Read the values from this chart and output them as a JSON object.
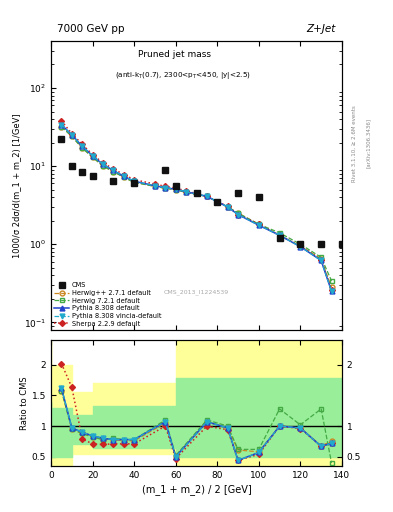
{
  "title_top": "7000 GeV pp",
  "title_right": "Z+Jet",
  "watermark": "CMS_2013_I1224539",
  "ylabel_main": "1000/σ 2dσ/d(m_1 + m_2) [1/GeV]",
  "ylabel_ratio": "Ratio to CMS",
  "xlabel": "(m_1 + m_2) / 2 [GeV]",
  "right_label": "Rivet 3.1.10, ≥ 2.6M events",
  "right_label2": "[arXiv:1306.3436]",
  "xlim": [
    0,
    140
  ],
  "ylim_main": [
    0.08,
    400
  ],
  "ylim_ratio": [
    0.35,
    2.4
  ],
  "cms_x": [
    5,
    10,
    15,
    20,
    30,
    40,
    55,
    60,
    70,
    80,
    90,
    100,
    110,
    120,
    130,
    140
  ],
  "cms_y": [
    22,
    10,
    8.5,
    7.5,
    6.5,
    6.0,
    9.0,
    5.5,
    4.5,
    3.5,
    4.5,
    4.0,
    1.2,
    1.0,
    1.0,
    1.0
  ],
  "herwig271_x": [
    5,
    10,
    15,
    20,
    25,
    30,
    35,
    40,
    50,
    55,
    60,
    65,
    75,
    85,
    90,
    100,
    110,
    120,
    130,
    135
  ],
  "herwig271_y": [
    32,
    24,
    17,
    13,
    10,
    8.5,
    7.2,
    6.2,
    5.5,
    5.2,
    5.0,
    4.6,
    4.1,
    3.0,
    2.5,
    1.8,
    1.3,
    0.95,
    0.65,
    0.28
  ],
  "herwig721_x": [
    5,
    10,
    15,
    20,
    25,
    30,
    35,
    40,
    50,
    55,
    60,
    65,
    75,
    85,
    90,
    100,
    110,
    120,
    130,
    135
  ],
  "herwig721_y": [
    32,
    24,
    17,
    13,
    10,
    8.5,
    7.2,
    6.2,
    5.5,
    5.2,
    5.0,
    4.6,
    4.1,
    3.0,
    2.5,
    1.8,
    1.4,
    1.0,
    0.68,
    0.34
  ],
  "pythia308_x": [
    5,
    10,
    15,
    20,
    25,
    30,
    35,
    40,
    50,
    55,
    60,
    65,
    75,
    85,
    90,
    100,
    110,
    120,
    130,
    135
  ],
  "pythia308_y": [
    34,
    25,
    18,
    13.5,
    10.5,
    8.8,
    7.4,
    6.4,
    5.6,
    5.3,
    5.05,
    4.7,
    4.1,
    3.0,
    2.4,
    1.75,
    1.3,
    0.93,
    0.62,
    0.25
  ],
  "pythia308v_x": [
    5,
    10,
    15,
    20,
    25,
    30,
    35,
    40,
    50,
    55,
    60,
    65,
    75,
    85,
    90,
    100,
    110,
    120,
    130,
    135
  ],
  "pythia308v_y": [
    34,
    25,
    18,
    13.5,
    10.5,
    8.8,
    7.4,
    6.4,
    5.6,
    5.3,
    5.05,
    4.7,
    4.1,
    3.0,
    2.4,
    1.75,
    1.3,
    0.93,
    0.62,
    0.25
  ],
  "sherpa_x": [
    5,
    10,
    15,
    20,
    25,
    30,
    35,
    40,
    50,
    55,
    60,
    65,
    75,
    85,
    90,
    100,
    110,
    120,
    130,
    135
  ],
  "sherpa_y": [
    38,
    26,
    19,
    14,
    11,
    9.2,
    7.8,
    6.7,
    5.9,
    5.5,
    5.25,
    4.8,
    4.1,
    3.05,
    2.4,
    1.8,
    1.3,
    0.95,
    0.63,
    0.26
  ],
  "ratio_x": [
    5,
    10,
    15,
    20,
    25,
    30,
    35,
    40,
    55,
    60,
    75,
    85,
    90,
    100,
    110,
    120,
    130,
    135
  ],
  "ratio_herwig271": [
    1.58,
    0.95,
    0.88,
    0.82,
    0.78,
    0.78,
    0.76,
    0.76,
    1.05,
    0.51,
    1.07,
    0.97,
    0.61,
    0.58,
    1.0,
    0.97,
    0.68,
    0.75
  ],
  "ratio_herwig721": [
    1.58,
    0.95,
    0.88,
    0.82,
    0.78,
    0.8,
    0.78,
    0.78,
    1.1,
    0.52,
    1.1,
    1.0,
    0.62,
    0.62,
    1.28,
    1.02,
    1.28,
    0.4
  ],
  "ratio_pythia308": [
    1.62,
    0.97,
    0.9,
    0.84,
    0.8,
    0.78,
    0.78,
    0.78,
    1.07,
    0.5,
    1.07,
    0.97,
    0.44,
    0.57,
    1.0,
    0.97,
    0.67,
    0.72
  ],
  "ratio_pythia308v": [
    1.62,
    0.97,
    0.9,
    0.84,
    0.8,
    0.78,
    0.78,
    0.78,
    1.07,
    0.5,
    1.07,
    0.97,
    0.44,
    0.57,
    1.0,
    0.97,
    0.67,
    0.72
  ],
  "ratio_sherpa": [
    2.02,
    1.63,
    0.79,
    0.71,
    0.7,
    0.71,
    0.71,
    0.71,
    1.0,
    0.47,
    1.0,
    0.94,
    0.44,
    0.54,
    1.0,
    0.96,
    0.67,
    0.72
  ],
  "band_yellow_x": [
    0,
    10,
    20,
    60,
    130,
    140
  ],
  "band_yellow_top": [
    2.4,
    2.0,
    1.55,
    1.7,
    2.4,
    2.4
  ],
  "band_yellow_bot": [
    0.35,
    0.35,
    0.55,
    0.55,
    0.35,
    0.35
  ],
  "band_green_x": [
    0,
    10,
    20,
    60,
    130,
    140
  ],
  "band_green_top": [
    1.4,
    1.3,
    1.18,
    1.32,
    1.78,
    1.78
  ],
  "band_green_bot": [
    0.5,
    0.5,
    0.7,
    0.65,
    0.5,
    0.5
  ],
  "color_herwig271": "#cc8822",
  "color_herwig721": "#44aa44",
  "color_pythia308": "#2244cc",
  "color_pythia308v": "#22aacc",
  "color_sherpa": "#cc2222",
  "color_cms": "#111111",
  "color_yellow": "#ffff99",
  "color_green": "#99ee99"
}
